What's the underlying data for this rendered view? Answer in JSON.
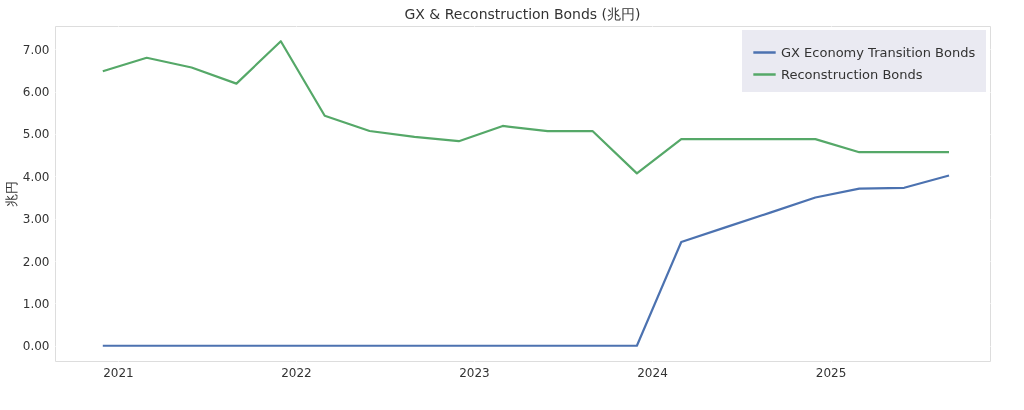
{
  "chart_data": {
    "type": "line",
    "title": "GX & Reconstruction Bonds (兆円)",
    "ylabel": "兆円",
    "x": [
      "2020-12-01",
      "2021-03-01",
      "2021-06-01",
      "2021-09-01",
      "2021-12-01",
      "2022-03-01",
      "2022-06-01",
      "2022-09-01",
      "2022-12-01",
      "2023-03-01",
      "2023-06-01",
      "2023-09-01",
      "2023-12-01",
      "2024-03-01",
      "2024-06-01",
      "2024-09-01",
      "2024-12-01",
      "2025-03-01",
      "2025-06-01",
      "2025-09-01"
    ],
    "series": [
      {
        "name": "GX Economy Transition Bonds",
        "color": "#4c72b0",
        "values": [
          0,
          0,
          0,
          0,
          0,
          0,
          0,
          0,
          0,
          0,
          0,
          0,
          0,
          2.45,
          2.8,
          3.15,
          3.5,
          3.71,
          3.73,
          4.02
        ]
      },
      {
        "name": "Reconstruction Bonds",
        "color": "#55a868",
        "values": [
          6.48,
          6.8,
          6.57,
          6.19,
          7.19,
          5.43,
          5.07,
          4.93,
          4.83,
          5.19,
          5.07,
          5.07,
          4.07,
          4.88,
          4.88,
          4.88,
          4.88,
          4.57,
          4.57,
          4.57
        ]
      }
    ],
    "xlim": [
      "2020-08-25",
      "2025-11-24"
    ],
    "xticks": [
      {
        "value": "2021-01-01",
        "label": "2021"
      },
      {
        "value": "2022-01-01",
        "label": "2022"
      },
      {
        "value": "2023-01-01",
        "label": "2023"
      },
      {
        "value": "2024-01-01",
        "label": "2024"
      },
      {
        "value": "2025-01-01",
        "label": "2025"
      }
    ],
    "ylim": [
      -0.36,
      7.55
    ],
    "yticks": [
      {
        "value": 0,
        "label": "0.00"
      },
      {
        "value": 1,
        "label": "1.00"
      },
      {
        "value": 2,
        "label": "2.00"
      },
      {
        "value": 3,
        "label": "3.00"
      },
      {
        "value": 4,
        "label": "4.00"
      },
      {
        "value": 5,
        "label": "5.00"
      },
      {
        "value": 6,
        "label": "6.00"
      },
      {
        "value": 7,
        "label": "7.00"
      }
    ],
    "grid": true,
    "legend": "top right",
    "marker": "none",
    "line_style": "solid"
  }
}
